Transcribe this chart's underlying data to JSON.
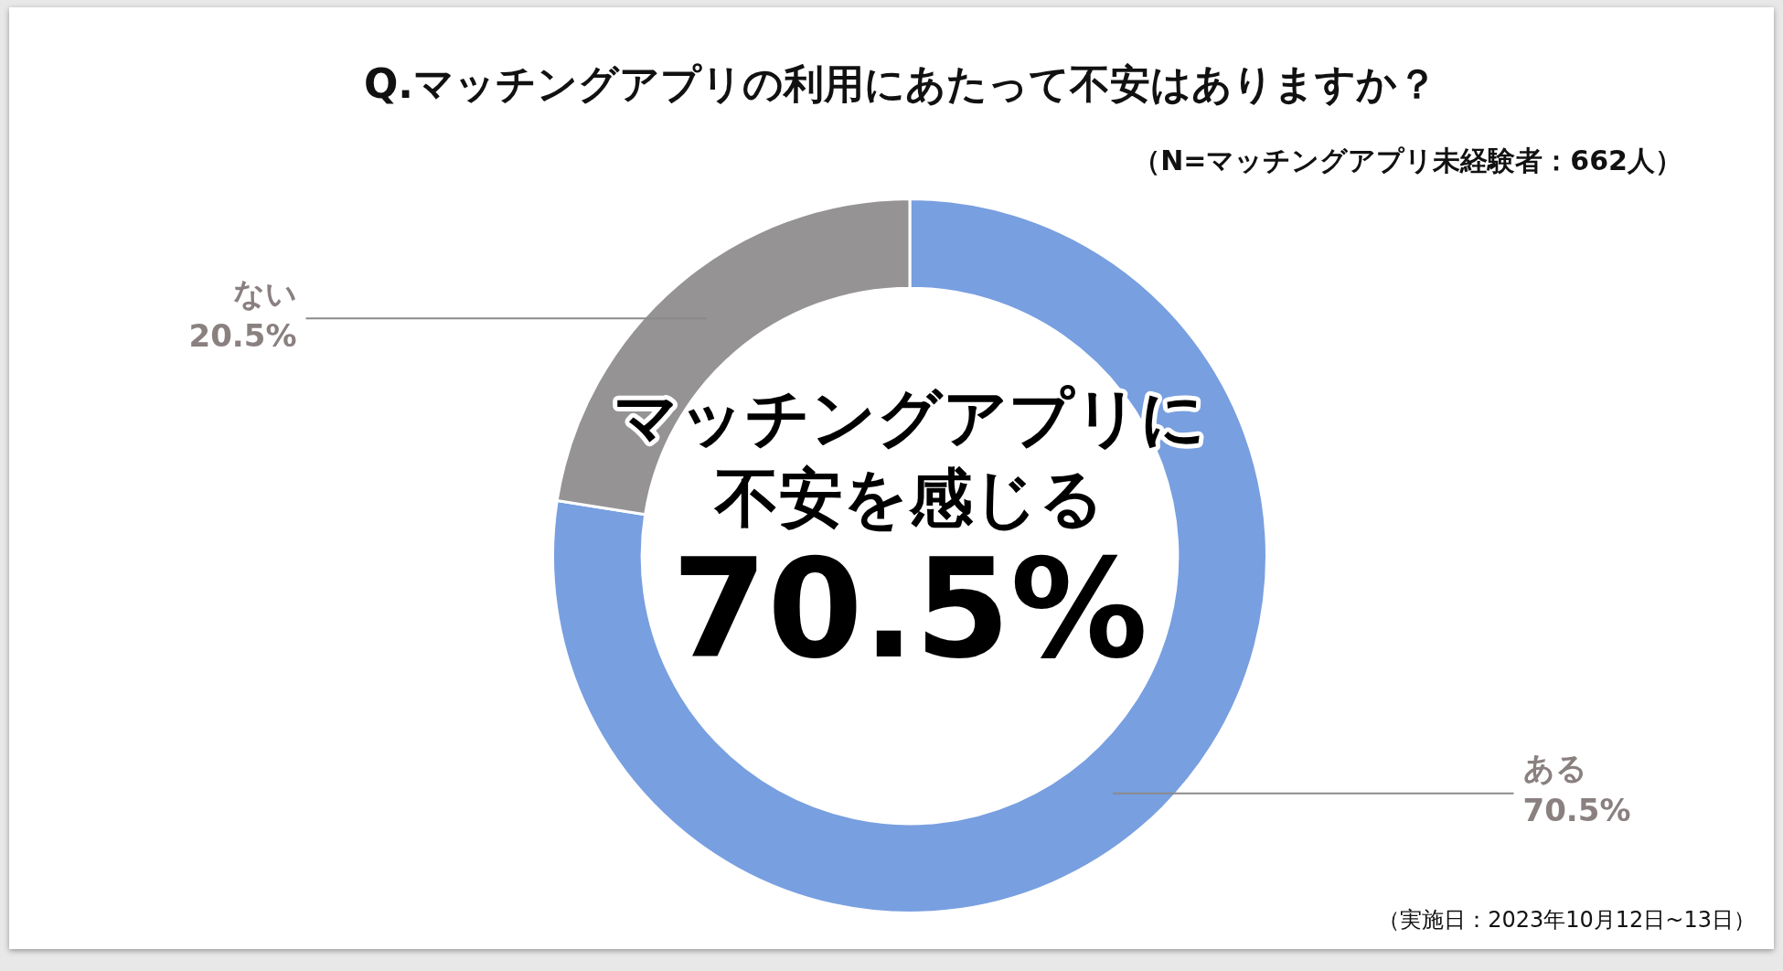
{
  "chart_data": {
    "type": "donut",
    "title": "Q.マッチングアプリの利用にあたって不安はありますか？",
    "subtitle": "（N=マッチングアプリ未経験者：662人）",
    "categories": [
      "ある",
      "ない"
    ],
    "values": [
      70.5,
      20.5
    ],
    "value_labels": [
      "70.5%",
      "20.5%"
    ],
    "colors": [
      "#789fe0",
      "#959393"
    ],
    "annotations": [
      "マッチングアプリに",
      "不安を感じる",
      "70.5%",
      "（実施日：2023年10月12日~13日）"
    ]
  }
}
